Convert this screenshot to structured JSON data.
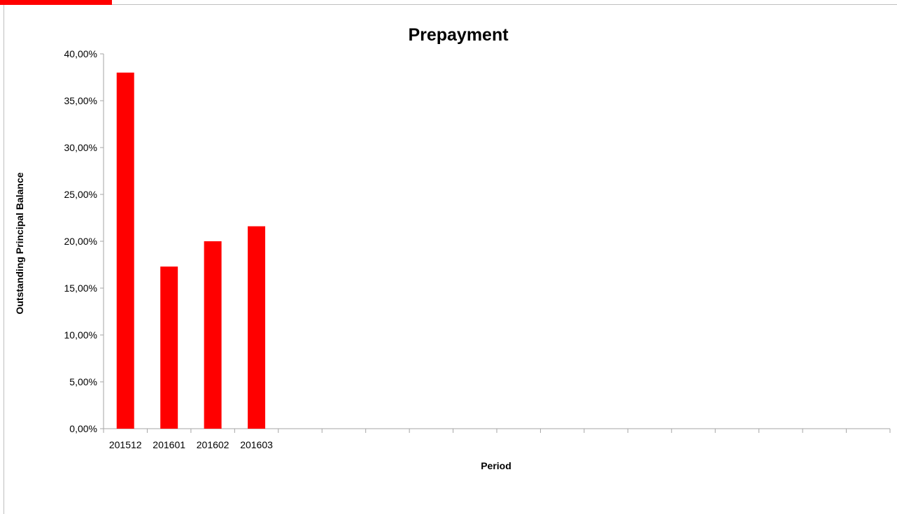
{
  "colors": {
    "bar": "#ff0000",
    "accent": "#ff0000",
    "axis": "#a6a6a6"
  },
  "chart_data": {
    "type": "bar",
    "title": "Prepayment",
    "xlabel": "Period",
    "ylabel": "Outstanding Principal Balance",
    "categories": [
      "201512",
      "201601",
      "201602",
      "201603",
      "",
      "",
      "",
      "",
      "",
      "",
      "",
      "",
      "",
      "",
      "",
      "",
      "",
      ""
    ],
    "values": [
      0.38,
      0.173,
      0.2,
      0.216,
      null,
      null,
      null,
      null,
      null,
      null,
      null,
      null,
      null,
      null,
      null,
      null,
      null,
      null
    ],
    "ylim": [
      0,
      0.4
    ],
    "yticks": [
      0,
      0.05,
      0.1,
      0.15,
      0.2,
      0.25,
      0.3,
      0.35,
      0.4
    ],
    "ytick_labels": [
      "0,00%",
      "5,00%",
      "10,00%",
      "15,00%",
      "20,00%",
      "25,00%",
      "30,00%",
      "35,00%",
      "40,00%"
    ],
    "grid": false,
    "legend": "none"
  }
}
